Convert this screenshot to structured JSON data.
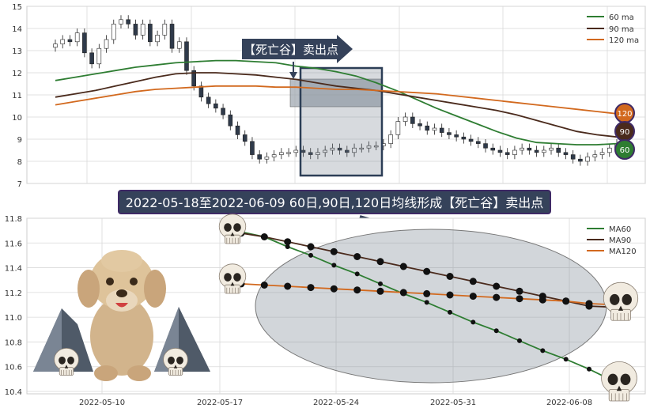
{
  "banner_top": "【死亡谷】卖出点",
  "banner_mid": "2022-05-18至2022-06-09 60日,90日,120日均线形成【死亡谷】卖出点",
  "colors": {
    "ma60": "#2e7d32",
    "ma90": "#4a2a1c",
    "ma120": "#d2691e",
    "banner_bg": "#35425a",
    "banner_border": "#3f2a66"
  },
  "chart_data": [
    {
      "type": "line",
      "title": "",
      "ylim": [
        7,
        15
      ],
      "yticks": [
        7,
        8,
        9,
        10,
        11,
        12,
        13,
        14,
        15
      ],
      "grid": true,
      "legend": "top-right",
      "series": [
        {
          "name": "60 ma",
          "values": [
            11.65,
            11.8,
            11.95,
            12.1,
            12.25,
            12.35,
            12.45,
            12.5,
            12.55,
            12.55,
            12.5,
            12.45,
            12.3,
            12.2,
            12.05,
            11.85,
            11.55,
            11.2,
            10.8,
            10.4,
            10.05,
            9.7,
            9.35,
            9.05,
            8.85,
            8.8,
            8.75,
            8.75,
            8.8
          ]
        },
        {
          "name": "90 ma",
          "values": [
            10.9,
            11.05,
            11.2,
            11.4,
            11.6,
            11.8,
            11.95,
            12.0,
            12.0,
            11.95,
            11.9,
            11.8,
            11.7,
            11.55,
            11.4,
            11.3,
            11.2,
            11.05,
            10.9,
            10.75,
            10.6,
            10.45,
            10.3,
            10.1,
            9.85,
            9.6,
            9.35,
            9.2,
            9.1
          ]
        },
        {
          "name": "120 ma",
          "values": [
            10.55,
            10.7,
            10.85,
            11.0,
            11.15,
            11.25,
            11.3,
            11.35,
            11.4,
            11.4,
            11.4,
            11.35,
            11.35,
            11.3,
            11.25,
            11.25,
            11.2,
            11.15,
            11.1,
            11.05,
            10.95,
            10.85,
            10.75,
            10.65,
            10.55,
            10.45,
            10.35,
            10.25,
            10.15
          ]
        }
      ],
      "candles_close": [
        13.3,
        13.5,
        13.4,
        13.8,
        12.9,
        12.4,
        13.1,
        13.5,
        14.2,
        14.4,
        14.2,
        13.7,
        14.2,
        13.4,
        13.7,
        14.2,
        13.1,
        13.4,
        12.1,
        11.4,
        10.9,
        10.6,
        10.4,
        10.1,
        9.6,
        9.2,
        8.9,
        8.3,
        8.1,
        8.2,
        8.3,
        8.4,
        8.4,
        8.5,
        8.4,
        8.3,
        8.4,
        8.5,
        8.6,
        8.5,
        8.4,
        8.6,
        8.6,
        8.7,
        8.7,
        8.8,
        9.2,
        9.8,
        10.0,
        9.7,
        9.6,
        9.4,
        9.5,
        9.3,
        9.2,
        9.1,
        9.0,
        8.9,
        8.8,
        8.6,
        8.5,
        8.4,
        8.3,
        8.5,
        8.6,
        8.5,
        8.4,
        8.5,
        8.6,
        8.4,
        8.3,
        8.1,
        8.0,
        8.2,
        8.3,
        8.4,
        8.6,
        8.8
      ],
      "end_markers": [
        "120",
        "90",
        "60"
      ]
    },
    {
      "type": "line",
      "title": "",
      "x": [
        "2022-05-18",
        "2022-05-19",
        "2022-05-20",
        "2022-05-23",
        "2022-05-24",
        "2022-05-25",
        "2022-05-26",
        "2022-05-27",
        "2022-05-30",
        "2022-05-31",
        "2022-06-01",
        "2022-06-02",
        "2022-06-06",
        "2022-06-07",
        "2022-06-08",
        "2022-06-09"
      ],
      "xticks": [
        "2022-05-10",
        "2022-05-17",
        "2022-05-24",
        "2022-05-31",
        "2022-06-08"
      ],
      "ylim": [
        10.38,
        11.8
      ],
      "yticks": [
        10.4,
        10.6,
        10.8,
        11.0,
        11.2,
        11.4,
        11.6,
        11.8
      ],
      "grid": true,
      "legend": "top-right",
      "series": [
        {
          "name": "MA60",
          "values": [
            11.69,
            11.65,
            11.57,
            11.5,
            11.42,
            11.35,
            11.27,
            11.19,
            11.12,
            11.04,
            10.96,
            10.89,
            10.81,
            10.73,
            10.66,
            10.58
          ]
        },
        {
          "name": "MA90",
          "values": [
            11.68,
            11.65,
            11.61,
            11.57,
            11.53,
            11.49,
            11.45,
            11.41,
            11.37,
            11.33,
            11.29,
            11.25,
            11.21,
            11.17,
            11.13,
            11.09
          ]
        },
        {
          "name": "MA120",
          "values": [
            11.27,
            11.26,
            11.25,
            11.24,
            11.23,
            11.22,
            11.21,
            11.2,
            11.19,
            11.18,
            11.17,
            11.16,
            11.15,
            11.14,
            11.13,
            11.11
          ]
        }
      ]
    }
  ]
}
